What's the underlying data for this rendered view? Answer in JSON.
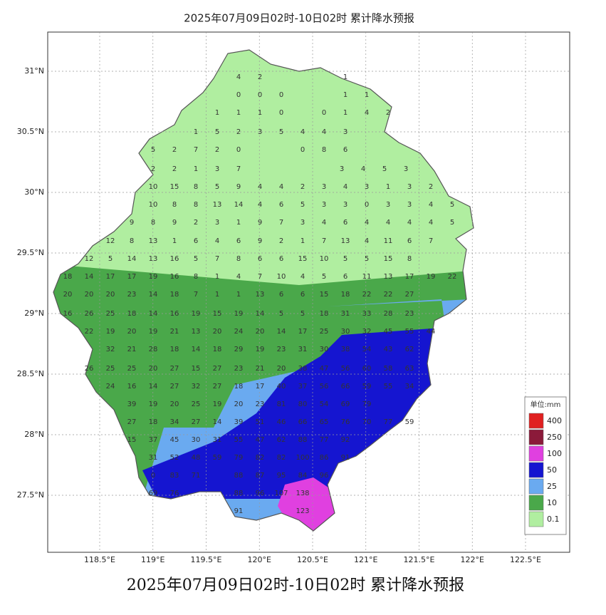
{
  "title": "2025年07月09日02时-10日02时 累计降水预报",
  "caption": "2025年07月09日02时-10日02时 累计降水预报",
  "lat_ticks": [
    {
      "value": 31,
      "label": "31°N"
    },
    {
      "value": 30.5,
      "label": "30.5°N"
    },
    {
      "value": 30,
      "label": "30°N"
    },
    {
      "value": 29.5,
      "label": "29.5°N"
    },
    {
      "value": 29,
      "label": "29°N"
    },
    {
      "value": 28.5,
      "label": "28.5°N"
    },
    {
      "value": 28,
      "label": "28°N"
    },
    {
      "value": 27.5,
      "label": "27.5°N"
    }
  ],
  "lon_ticks": [
    {
      "value": 118.5,
      "label": "118.5°E"
    },
    {
      "value": 119,
      "label": "119°E"
    },
    {
      "value": 119.5,
      "label": "119.5°E"
    },
    {
      "value": 120,
      "label": "120°E"
    },
    {
      "value": 120.5,
      "label": "120.5°E"
    },
    {
      "value": 121,
      "label": "121°E"
    },
    {
      "value": 121.5,
      "label": "121.5°E"
    },
    {
      "value": 122,
      "label": "122°E"
    },
    {
      "value": 122.5,
      "label": "122.5°E"
    }
  ],
  "legend": {
    "title": "单位:mm",
    "levels": [
      {
        "value": 400,
        "color": "#e02020"
      },
      {
        "value": 250,
        "color": "#8b1a3a"
      },
      {
        "value": 100,
        "color": "#e040e0"
      },
      {
        "value": 50,
        "color": "#1515d0"
      },
      {
        "value": 25,
        "color": "#6aaaf0"
      },
      {
        "value": 10,
        "color": "#4aa84a"
      },
      {
        "value": 0.1,
        "color": "#b0eea0"
      }
    ]
  },
  "stations": [
    [
      4,
      2
    ],
    [
      1
    ],
    [
      0,
      0,
      0
    ],
    [
      1,
      1
    ],
    [
      1,
      1,
      1,
      0
    ],
    [
      0,
      1,
      4,
      2
    ],
    [
      1,
      5,
      2,
      3,
      5,
      4,
      4,
      3
    ],
    [
      5,
      2,
      7,
      2,
      0
    ],
    [
      0,
      8,
      6
    ],
    [
      2,
      2,
      1,
      3,
      7
    ],
    [
      3,
      4,
      5,
      3
    ],
    [
      10,
      15,
      8,
      5,
      9,
      4,
      4,
      2,
      3,
      4,
      3,
      1,
      3,
      2
    ],
    [
      10,
      8,
      8,
      13,
      14,
      4,
      6,
      5,
      3,
      3,
      0,
      3,
      3,
      4,
      5
    ],
    [
      9,
      8,
      9,
      2,
      3,
      1,
      9,
      7,
      3,
      4,
      6,
      4,
      4,
      4,
      4,
      5
    ],
    [
      12,
      8,
      13,
      1,
      6,
      4,
      6,
      9,
      2,
      1,
      7,
      13,
      4,
      11,
      6,
      7
    ],
    [
      12,
      5,
      14,
      13,
      16,
      5,
      7,
      8,
      6,
      6,
      15,
      10,
      5,
      5,
      15,
      8
    ],
    [
      18,
      14,
      17,
      17,
      19,
      16,
      8,
      1,
      4,
      7,
      10,
      4,
      5,
      6,
      11,
      13,
      17,
      19,
      22
    ],
    [
      20,
      20,
      20,
      23,
      14,
      18,
      7,
      1,
      1,
      13,
      6,
      6,
      15,
      18,
      22,
      22,
      27
    ],
    [
      16,
      26,
      25,
      18,
      14,
      16,
      19,
      15,
      19,
      14,
      5,
      5,
      18,
      31,
      33,
      28,
      23
    ],
    [
      22,
      19,
      20,
      19,
      21,
      13,
      20,
      24,
      20,
      14,
      17,
      25,
      30,
      32,
      45,
      55,
      44
    ],
    [
      32,
      21,
      28,
      18,
      14,
      18,
      29,
      19,
      23,
      31,
      30,
      38,
      54,
      43,
      62
    ],
    [
      26,
      25,
      25,
      20,
      27,
      15,
      27,
      23,
      21,
      20,
      38,
      47,
      56,
      60,
      58,
      63
    ],
    [
      24,
      16,
      14,
      27,
      32,
      27,
      18,
      17,
      40,
      37,
      56,
      66,
      59,
      55,
      34
    ],
    [
      39,
      19,
      20,
      25,
      19,
      20,
      23,
      81,
      80,
      54,
      69,
      79
    ],
    [
      27,
      18,
      34,
      27,
      14,
      39,
      51,
      46,
      66,
      65,
      76,
      70,
      77,
      59
    ],
    [
      15,
      37,
      45,
      30,
      31,
      55,
      47,
      62,
      88,
      77,
      92
    ],
    [
      31,
      52,
      48,
      59,
      79,
      82,
      82,
      100,
      86,
      91
    ],
    [
      0,
      83,
      71
    ],
    [
      88,
      87,
      95,
      84,
      96
    ],
    [
      69,
      76
    ],
    [
      88,
      96,
      107,
      138
    ],
    [
      91
    ],
    [
      123
    ]
  ]
}
